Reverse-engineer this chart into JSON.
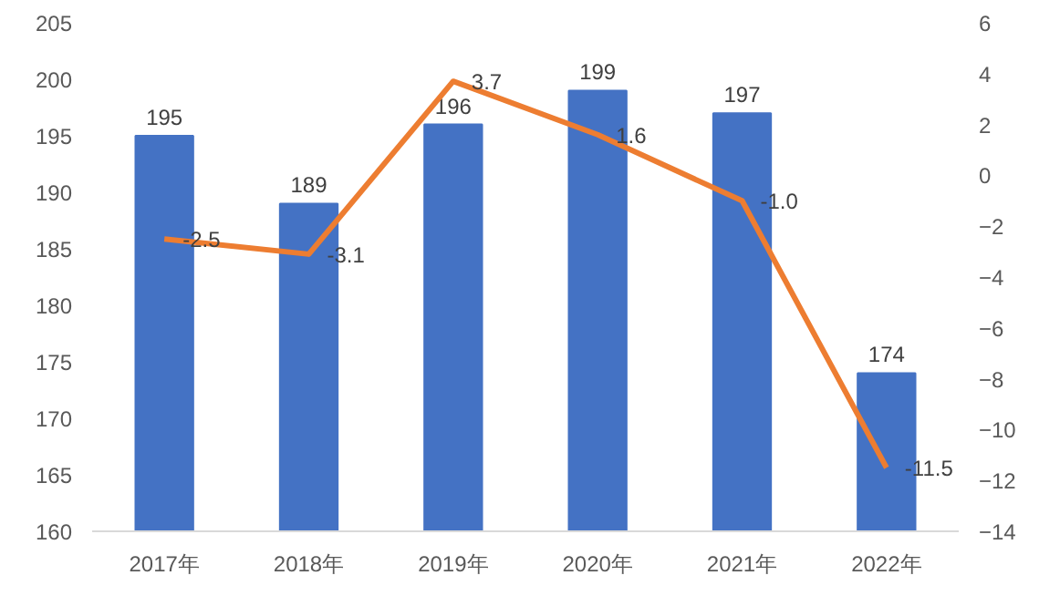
{
  "chart_data": {
    "type": "bar",
    "categories": [
      "2017年",
      "2018年",
      "2019年",
      "2020年",
      "2021年",
      "2022年"
    ],
    "series": [
      {
        "color": "#4472c4",
        "values": [
          195,
          189,
          196,
          199,
          197,
          174
        ]
      },
      {
        "type": "line",
        "axis": "y2",
        "color": "#ed7d31",
        "values": [
          -2.5,
          -3.1,
          3.7,
          1.6,
          -1.0,
          -11.5
        ],
        "value_labels": [
          "-2.5",
          "-3.1",
          "3.7",
          "1.6",
          "-1.0",
          "-11.5"
        ]
      }
    ],
    "ylim": [
      160,
      205
    ],
    "yticks": [
      160,
      165,
      170,
      175,
      180,
      185,
      190,
      195,
      200,
      205
    ],
    "y2lim": [
      -14,
      6
    ],
    "y2ticks": [
      -14,
      -12,
      -10,
      -8,
      -6,
      -4,
      -2,
      0,
      2,
      4,
      6
    ],
    "data_labels": true,
    "grid": false,
    "marker": "none",
    "line_style": "solid"
  }
}
